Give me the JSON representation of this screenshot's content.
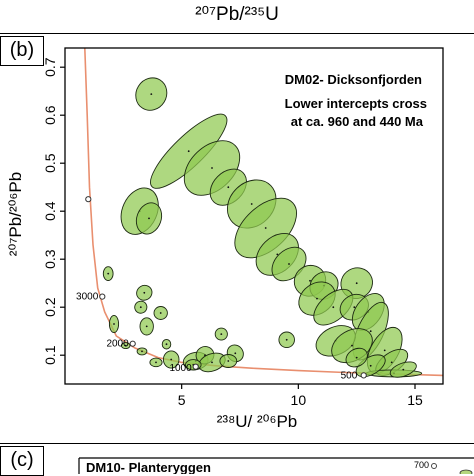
{
  "top_axis_title": "²⁰⁷Pb/²³⁵U",
  "panels": {
    "b_label": "(b)",
    "c_label": "(c)",
    "c_title": "DM10- Planteryggen",
    "c_corner_label": "700"
  },
  "chart_data": {
    "type": "scatter",
    "title": "DM02- Dicksonfjorden",
    "subtitle_line1": "Lower intercepts cross",
    "subtitle_line2": "at ca. 960 and 440 Ma",
    "xlabel": "²³⁸U/ ²⁰⁶Pb",
    "ylabel": "²⁰⁷Pb/²⁰⁶Pb",
    "xlim": [
      0,
      16.2
    ],
    "ylim": [
      0.04,
      0.74
    ],
    "x_ticks": [
      5,
      10,
      15
    ],
    "x_tick_labels": [
      "5",
      "10",
      "15"
    ],
    "y_ticks": [
      0.1,
      0.2,
      0.3,
      0.4,
      0.5,
      0.6,
      0.7
    ],
    "y_tick_labels": [
      "0.1",
      "0.2",
      "0.3",
      "0.4",
      "0.5",
      "0.6",
      "0.7"
    ],
    "grid": false,
    "concordia": [
      [
        0.85,
        0.74
      ],
      [
        0.95,
        0.6
      ],
      [
        1.05,
        0.45
      ],
      [
        1.2,
        0.33
      ],
      [
        1.4,
        0.24
      ],
      [
        1.7,
        0.19
      ],
      [
        2.2,
        0.14
      ],
      [
        3.0,
        0.115
      ],
      [
        4.0,
        0.095
      ],
      [
        5.0,
        0.085
      ],
      [
        6.5,
        0.078
      ],
      [
        8.0,
        0.073
      ],
      [
        10.0,
        0.068
      ],
      [
        12.0,
        0.064
      ],
      [
        14.0,
        0.061
      ],
      [
        16.2,
        0.058
      ]
    ],
    "concordia_ages": [
      {
        "label": "3000",
        "x": 1.6,
        "y": 0.222
      },
      {
        "label": "2000",
        "x": 2.9,
        "y": 0.124
      },
      {
        "label": "1000",
        "x": 5.6,
        "y": 0.073
      },
      {
        "label": "500",
        "x": 12.7,
        "y": 0.058
      }
    ],
    "concordia_age_markers": [
      [
        1.0,
        0.425
      ],
      [
        1.6,
        0.222
      ],
      [
        2.9,
        0.124
      ],
      [
        5.6,
        0.076
      ],
      [
        12.8,
        0.058
      ]
    ],
    "ellipses": [
      {
        "x": 3.7,
        "y": 0.644,
        "rx": 1.25,
        "ry": 0.035,
        "angle": -58
      },
      {
        "x": 3.2,
        "y": 0.4,
        "rx": 1.9,
        "ry": 0.04,
        "angle": -66
      },
      {
        "x": 3.6,
        "y": 0.385,
        "rx": 1.2,
        "ry": 0.028,
        "angle": -70
      },
      {
        "x": 5.3,
        "y": 0.525,
        "rx": 4.2,
        "ry": 0.035,
        "angle": -44
      },
      {
        "x": 6.3,
        "y": 0.49,
        "rx": 2.6,
        "ry": 0.05,
        "angle": -44
      },
      {
        "x": 7.0,
        "y": 0.45,
        "rx": 1.6,
        "ry": 0.035,
        "angle": -45
      },
      {
        "x": 8.0,
        "y": 0.415,
        "rx": 2.1,
        "ry": 0.05,
        "angle": -44
      },
      {
        "x": 8.6,
        "y": 0.365,
        "rx": 3.0,
        "ry": 0.05,
        "angle": -43
      },
      {
        "x": 9.1,
        "y": 0.31,
        "rx": 1.9,
        "ry": 0.04,
        "angle": -44
      },
      {
        "x": 9.6,
        "y": 0.29,
        "rx": 1.5,
        "ry": 0.032,
        "angle": -44
      },
      {
        "x": 10.5,
        "y": 0.255,
        "rx": 1.2,
        "ry": 0.035,
        "angle": -35
      },
      {
        "x": 11.1,
        "y": 0.245,
        "rx": 1.1,
        "ry": 0.03,
        "angle": -40
      },
      {
        "x": 12.5,
        "y": 0.25,
        "rx": 1.2,
        "ry": 0.035,
        "angle": -30
      },
      {
        "x": 10.8,
        "y": 0.218,
        "rx": 1.5,
        "ry": 0.035,
        "angle": -35
      },
      {
        "x": 11.5,
        "y": 0.2,
        "rx": 1.8,
        "ry": 0.03,
        "angle": -40
      },
      {
        "x": 12.4,
        "y": 0.2,
        "rx": 1.1,
        "ry": 0.028,
        "angle": -30
      },
      {
        "x": 13.0,
        "y": 0.19,
        "rx": 1.6,
        "ry": 0.03,
        "angle": -55
      },
      {
        "x": 13.1,
        "y": 0.15,
        "rx": 2.5,
        "ry": 0.03,
        "angle": -65
      },
      {
        "x": 11.6,
        "y": 0.13,
        "rx": 1.6,
        "ry": 0.032,
        "angle": -25
      },
      {
        "x": 12.3,
        "y": 0.12,
        "rx": 1.7,
        "ry": 0.035,
        "angle": -30
      },
      {
        "x": 13.7,
        "y": 0.11,
        "rx": 2.0,
        "ry": 0.032,
        "angle": -60
      },
      {
        "x": 14.0,
        "y": 0.085,
        "rx": 1.4,
        "ry": 0.022,
        "angle": -35
      },
      {
        "x": 14.1,
        "y": 0.062,
        "rx": 2.2,
        "ry": 0.008,
        "angle": 0
      },
      {
        "x": 13.1,
        "y": 0.078,
        "rx": 1.2,
        "ry": 0.02,
        "angle": -30
      },
      {
        "x": 12.5,
        "y": 0.095,
        "rx": 0.8,
        "ry": 0.02,
        "angle": -30
      },
      {
        "x": 14.5,
        "y": 0.07,
        "rx": 1.0,
        "ry": 0.015,
        "angle": -20
      },
      {
        "x": 1.85,
        "y": 0.27,
        "rx": 0.25,
        "ry": 0.016,
        "angle": 0
      },
      {
        "x": 2.1,
        "y": 0.165,
        "rx": 0.22,
        "ry": 0.02,
        "angle": 0
      },
      {
        "x": 3.4,
        "y": 0.23,
        "rx": 0.5,
        "ry": 0.017,
        "angle": -30
      },
      {
        "x": 3.25,
        "y": 0.2,
        "rx": 0.35,
        "ry": 0.014,
        "angle": -30
      },
      {
        "x": 3.5,
        "y": 0.16,
        "rx": 0.4,
        "ry": 0.02,
        "angle": 0
      },
      {
        "x": 4.1,
        "y": 0.188,
        "rx": 0.4,
        "ry": 0.015,
        "angle": 0
      },
      {
        "x": 4.35,
        "y": 0.123,
        "rx": 0.2,
        "ry": 0.011,
        "angle": 0
      },
      {
        "x": 4.55,
        "y": 0.091,
        "rx": 0.5,
        "ry": 0.02,
        "angle": 0
      },
      {
        "x": 5.6,
        "y": 0.088,
        "rx": 0.9,
        "ry": 0.02,
        "angle": -10
      },
      {
        "x": 6.0,
        "y": 0.1,
        "rx": 0.6,
        "ry": 0.02,
        "angle": -30
      },
      {
        "x": 6.3,
        "y": 0.085,
        "rx": 1.0,
        "ry": 0.02,
        "angle": -20
      },
      {
        "x": 6.7,
        "y": 0.144,
        "rx": 0.35,
        "ry": 0.014,
        "angle": 0
      },
      {
        "x": 7.3,
        "y": 0.104,
        "rx": 0.5,
        "ry": 0.02,
        "angle": -35
      },
      {
        "x": 9.5,
        "y": 0.132,
        "rx": 0.5,
        "ry": 0.018,
        "angle": 0
      },
      {
        "x": 7.0,
        "y": 0.088,
        "rx": 0.55,
        "ry": 0.015,
        "angle": 0
      },
      {
        "x": 3.9,
        "y": 0.085,
        "rx": 0.35,
        "ry": 0.01,
        "angle": 0
      },
      {
        "x": 3.3,
        "y": 0.108,
        "rx": 0.25,
        "ry": 0.008,
        "angle": 0
      },
      {
        "x": 2.6,
        "y": 0.12,
        "rx": 0.2,
        "ry": 0.007,
        "angle": 0
      },
      {
        "x": 5.5,
        "y": 0.08,
        "rx": 0.5,
        "ry": 0.012,
        "angle": 0
      }
    ],
    "colors": {
      "ellipse_fill": "#8fc94f",
      "ellipse_stroke": "#1d2a12",
      "concordia": "#e98f6f",
      "axis": "#000000"
    }
  }
}
